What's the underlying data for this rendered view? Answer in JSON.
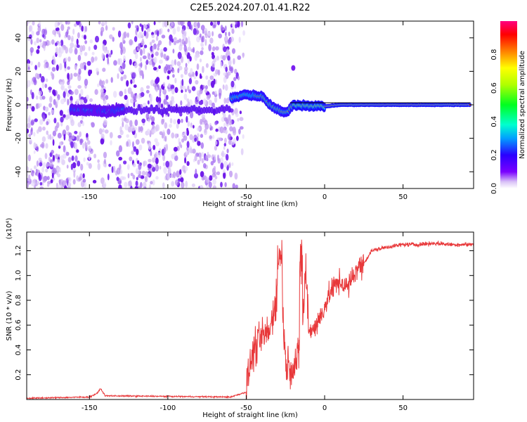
{
  "figure_title": "C2E5.2024.207.01.41.R22",
  "chart_data": [
    {
      "type": "heatmap",
      "xlabel": "Height of straight line (km)",
      "ylabel": "Frequency (Hz)",
      "xlim": [
        -190,
        95
      ],
      "ylim": [
        -50,
        50
      ],
      "xticks": [
        -150,
        -100,
        -50,
        0,
        50
      ],
      "yticks": [
        -40,
        -20,
        0,
        20,
        40
      ],
      "colorbar": {
        "label": "Normalized spectral amplitude",
        "range": [
          0,
          1
        ],
        "ticks": [
          "0.0",
          "0.2",
          "0.4",
          "0.6",
          "0.8"
        ],
        "colormap": "rainbow"
      },
      "signal_track": [
        {
          "x": -162,
          "y": -3
        },
        {
          "x": -150,
          "y": -3
        },
        {
          "x": -140,
          "y": -4
        },
        {
          "x": -130,
          "y": -3
        },
        {
          "x": -60,
          "y": 4
        },
        {
          "x": -50,
          "y": 6
        },
        {
          "x": -40,
          "y": 5
        },
        {
          "x": -35,
          "y": 0
        },
        {
          "x": -30,
          "y": -3
        },
        {
          "x": -25,
          "y": -5
        },
        {
          "x": -20,
          "y": 0
        },
        {
          "x": 0,
          "y": -1
        },
        {
          "x": 10,
          "y": 0
        },
        {
          "x": 93,
          "y": 0
        }
      ],
      "noise_region_x": [
        -190,
        -55
      ],
      "spur": {
        "x": -20,
        "y": 22
      }
    },
    {
      "type": "line",
      "xlabel": "Height of straight line (km)",
      "ylabel": "SNR (10 * v/v)",
      "y_multiplier": "(x10⁴)",
      "xlim": [
        -190,
        95
      ],
      "ylim": [
        0,
        1.35
      ],
      "xticks": [
        -150,
        -100,
        -50,
        0,
        50
      ],
      "yticks": [
        "0.2",
        "0.4",
        "0.6",
        "0.8",
        "1.0",
        "1.2"
      ],
      "series_color": "#e8383a",
      "x": [
        -190,
        -150,
        -145,
        -143,
        -140,
        -60,
        -50,
        -48,
        -45,
        -40,
        -35,
        -32,
        -30,
        -28,
        -25,
        -20,
        -15,
        -12,
        -10,
        -5,
        0,
        5,
        10,
        15,
        20,
        25,
        30,
        40,
        50,
        60,
        70,
        80,
        93
      ],
      "values": [
        0.01,
        0.02,
        0.05,
        0.09,
        0.03,
        0.02,
        0.06,
        0.25,
        0.4,
        0.5,
        0.55,
        0.75,
        0.9,
        1.1,
        0.3,
        0.25,
        0.4,
        1.05,
        0.55,
        0.6,
        0.75,
        0.9,
        0.95,
        0.9,
        1.05,
        1.1,
        1.2,
        1.23,
        1.25,
        1.25,
        1.26,
        1.25,
        1.25
      ]
    }
  ]
}
